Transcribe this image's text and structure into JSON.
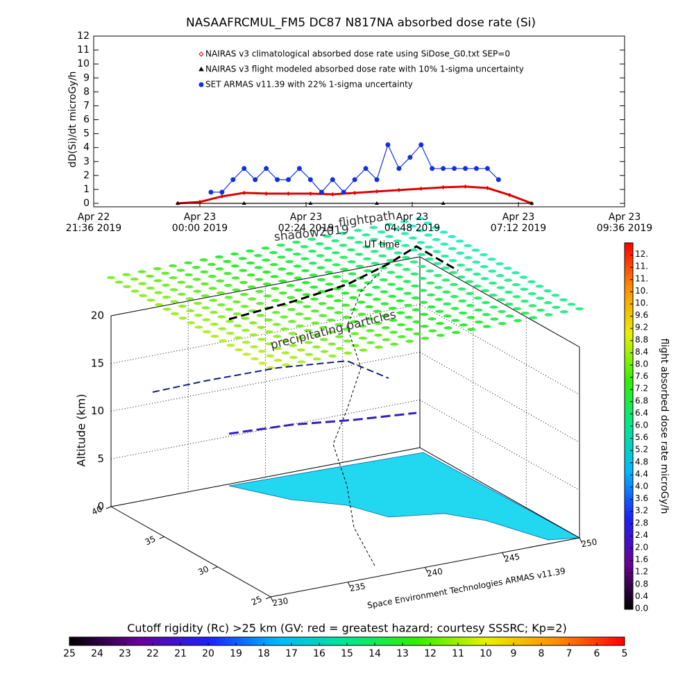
{
  "chart_data": [
    {
      "type": "line",
      "title": "NASAAFRCMUL_FM5 DC87 N817NA absorbed dose rate (Si)",
      "ylabel": "dD(Si)/dt microGy/h",
      "xlim": [
        "2019-04-22T21:36",
        "2019-04-23T09:36"
      ],
      "xticks": [
        {
          "value": "2019-04-22T21:36",
          "label": "Apr 22\n21:36 2019"
        },
        {
          "value": "2019-04-23T00:00",
          "label": "Apr 23\n00:00 2019"
        },
        {
          "value": "2019-04-23T02:24",
          "label": "Apr 23\n02:24 2019"
        },
        {
          "value": "2019-04-23T04:48",
          "label": "Apr 23\n04:48 2019"
        },
        {
          "value": "2019-04-23T07:12",
          "label": "Apr 23\n07:12 2019"
        },
        {
          "value": "2019-04-23T09:36",
          "label": "Apr 23\n09:36 2019"
        }
      ],
      "ylim": [
        0,
        12
      ],
      "yticks": [
        0,
        1,
        2,
        3,
        4,
        5,
        6,
        7,
        8,
        9,
        10,
        11,
        12
      ],
      "series": [
        {
          "name": "NAIRAS v3 climatological absorbed dose rate using SiDose_G0.txt SEP=0",
          "color": "#e00000",
          "marker": "diamond",
          "x": [
            "2019-04-22T23:30",
            "2019-04-23T00:00",
            "2019-04-23T00:30",
            "2019-04-23T01:00",
            "2019-04-23T01:30",
            "2019-04-23T02:00",
            "2019-04-23T02:30",
            "2019-04-23T03:00",
            "2019-04-23T03:30",
            "2019-04-23T04:00",
            "2019-04-23T04:30",
            "2019-04-23T05:00",
            "2019-04-23T05:30",
            "2019-04-23T06:00",
            "2019-04-23T06:30",
            "2019-04-23T07:00",
            "2019-04-23T07:30"
          ],
          "values": [
            0,
            0.1,
            0.5,
            0.75,
            0.7,
            0.7,
            0.7,
            0.65,
            0.75,
            0.85,
            0.95,
            1.05,
            1.15,
            1.2,
            1.1,
            0.6,
            0
          ]
        },
        {
          "name": "NAIRAS v3 flight modeled absorbed dose rate with 10% 1-sigma uncertainty",
          "color": "#000000",
          "marker": "triangle",
          "x": [
            "2019-04-22T23:30",
            "2019-04-23T01:00",
            "2019-04-23T02:30",
            "2019-04-23T04:00",
            "2019-04-23T05:30",
            "2019-04-23T07:30"
          ],
          "values": [
            0,
            0,
            0,
            0,
            0,
            0
          ]
        },
        {
          "name": "SET ARMAS v11.39 with 22% 1-sigma uncertainty",
          "color": "#1030e0",
          "marker": "circle",
          "x": [
            "2019-04-23T00:15",
            "2019-04-23T00:30",
            "2019-04-23T00:45",
            "2019-04-23T01:00",
            "2019-04-23T01:15",
            "2019-04-23T01:30",
            "2019-04-23T01:45",
            "2019-04-23T02:00",
            "2019-04-23T02:15",
            "2019-04-23T02:30",
            "2019-04-23T02:45",
            "2019-04-23T03:00",
            "2019-04-23T03:15",
            "2019-04-23T03:30",
            "2019-04-23T03:45",
            "2019-04-23T04:00",
            "2019-04-23T04:15",
            "2019-04-23T04:30",
            "2019-04-23T04:45",
            "2019-04-23T05:00",
            "2019-04-23T05:15",
            "2019-04-23T05:30",
            "2019-04-23T05:45",
            "2019-04-23T06:00",
            "2019-04-23T06:15",
            "2019-04-23T06:30",
            "2019-04-23T06:45"
          ],
          "values": [
            0.8,
            0.8,
            1.7,
            2.5,
            1.7,
            2.5,
            1.7,
            1.7,
            2.5,
            1.7,
            0.8,
            1.7,
            0.8,
            1.7,
            2.5,
            1.7,
            4.2,
            2.5,
            3.3,
            4.2,
            2.5,
            2.5,
            2.5,
            2.5,
            2.5,
            2.5,
            1.7
          ]
        }
      ]
    },
    {
      "type": "scatter3d",
      "annotations": [
        "shadow2019",
        "flightpath",
        "UT time",
        "precipitating particles"
      ],
      "xlabel": "Space Environment Technologies ARMAS v11.39",
      "zlabel": "Altitude (km)",
      "xlim": [
        230,
        250
      ],
      "xticks": [
        230,
        235,
        240,
        245,
        250
      ],
      "ylim": [
        25,
        40
      ],
      "yticks": [
        40,
        35,
        30,
        25
      ],
      "zlim": [
        0,
        20
      ],
      "zticks": [
        0,
        5,
        10,
        15,
        20
      ]
    },
    {
      "type": "colorbar",
      "orientation": "vertical",
      "label": "flight absorbed dose rate microGy/h",
      "colormap": [
        "#000000",
        "#6a0098",
        "#1a20ff",
        "#00b8ff",
        "#00e890",
        "#30f000",
        "#e8f000",
        "#ff9000",
        "#ff0000"
      ],
      "lim": [
        0,
        12
      ],
      "ticks": [
        {
          "value": 0,
          "label": "0.0"
        },
        0.4,
        0.8,
        1.2,
        1.6,
        {
          "value": 2,
          "label": "2.0"
        },
        2.4,
        2.8,
        3.2,
        3.6,
        {
          "value": 4,
          "label": "4.0"
        },
        4.4,
        4.8,
        5.2,
        5.6,
        {
          "value": 6,
          "label": "6.0"
        },
        6.4,
        6.8,
        7.2,
        7.6,
        {
          "value": 8,
          "label": "8.0"
        },
        8.4,
        8.8,
        9.2,
        9.6,
        {
          "value": 10,
          "label": "10."
        },
        {
          "value": 10.4,
          "label": "10."
        },
        {
          "value": 10.8,
          "label": "11."
        },
        {
          "value": 11.2,
          "label": "11."
        },
        {
          "value": 11.6,
          "label": "12."
        }
      ]
    },
    {
      "type": "colorbar",
      "orientation": "horizontal",
      "label": "Cutoff rigidity (Rc) >25 km (GV: red = greatest hazard; courtesy SSSRC; Kp=2)",
      "colormap": [
        "#000000",
        "#6a0098",
        "#1a20ff",
        "#00b8ff",
        "#00e890",
        "#30f000",
        "#e8f000",
        "#ff9000",
        "#ff0000"
      ],
      "lim": [
        25,
        5
      ],
      "ticks": [
        25,
        24,
        23,
        22,
        21,
        20,
        19,
        18,
        17,
        16,
        15,
        14,
        13,
        12,
        11,
        10,
        9,
        8,
        7,
        6,
        5
      ]
    }
  ]
}
